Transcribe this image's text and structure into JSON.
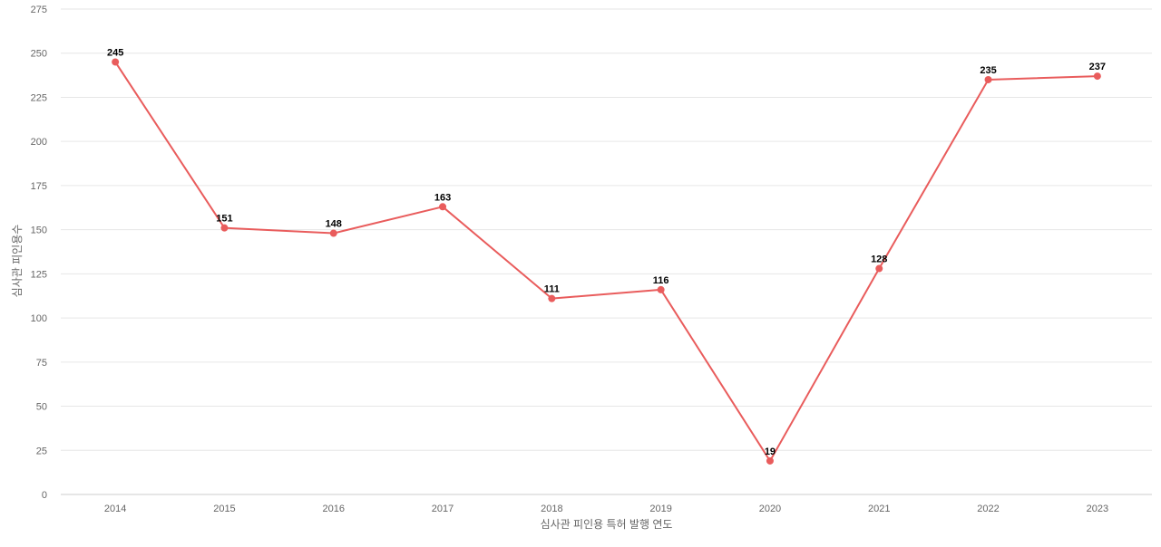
{
  "chart_data": {
    "type": "line",
    "title": "",
    "xlabel": "심사관 피인용 특허 발행 연도",
    "ylabel": "심사관 피인용수",
    "categories": [
      "2014",
      "2015",
      "2016",
      "2017",
      "2018",
      "2019",
      "2020",
      "2021",
      "2022",
      "2023"
    ],
    "series": [
      {
        "values": [
          245,
          151,
          148,
          163,
          111,
          116,
          19,
          128,
          235,
          237
        ]
      }
    ],
    "ylim": [
      0,
      275
    ],
    "yticks": [
      0,
      25,
      50,
      75,
      100,
      125,
      150,
      175,
      200,
      225,
      250,
      275
    ],
    "grid": true,
    "legend": "none",
    "data_labels": true,
    "colors": {
      "line": "#e95c5c",
      "grid": "#e6e6e6",
      "tick_text": "#666666",
      "label_text": "#000000"
    }
  }
}
